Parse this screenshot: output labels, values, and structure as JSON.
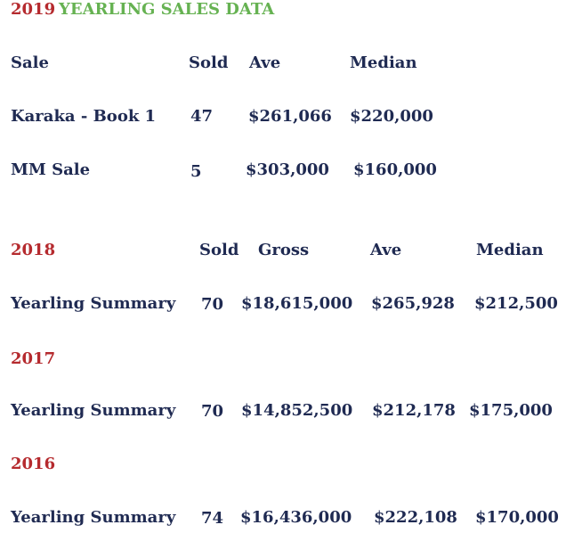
{
  "colors": {
    "year_red": "#b52a2e",
    "title_green": "#66b252",
    "text_navy": "#1f2a52"
  },
  "title": {
    "year": "2019",
    "text": "YEARLING SALES DATA"
  },
  "table2019": {
    "headers": {
      "sale": "Sale",
      "sold": "Sold",
      "ave": "Ave",
      "median": "Median"
    },
    "rows": [
      {
        "sale": "Karaka - Book 1",
        "sold": "47",
        "ave": "$261,066",
        "median": "$220,000"
      },
      {
        "sale": "MM Sale",
        "sold": "5",
        "ave": "$303,000",
        "median": "$160,000"
      }
    ]
  },
  "table_prev": {
    "headers": {
      "year": "2018",
      "sold": "Sold",
      "gross": "Gross",
      "ave": "Ave",
      "median": "Median"
    },
    "rows": [
      {
        "year": "2018",
        "label": "Yearling Summary",
        "sold": "70",
        "gross": "$18,615,000",
        "ave": "$265,928",
        "median": "$212,500"
      },
      {
        "year": "2017",
        "label": "Yearling Summary",
        "sold": "70",
        "gross": "$14,852,500",
        "ave": "$212,178",
        "median": "$175,000"
      },
      {
        "year": "2016",
        "label": "Yearling Summary",
        "sold": "74",
        "gross": "$16,436,000",
        "ave": "$222,108",
        "median": "$170,000"
      }
    ]
  }
}
